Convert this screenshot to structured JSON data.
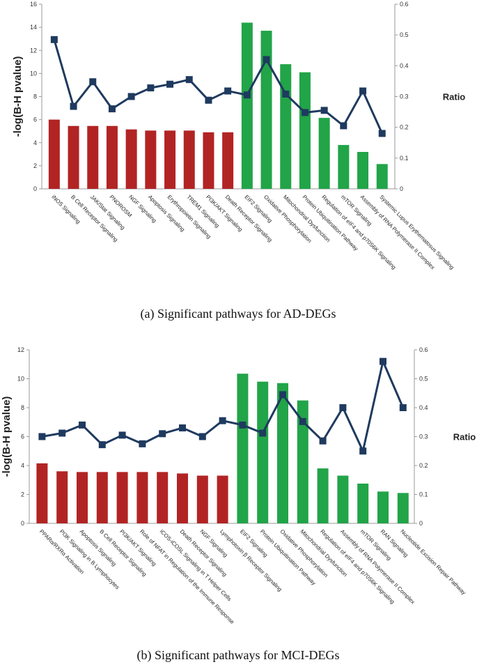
{
  "colors": {
    "red": "#B22424",
    "green": "#22A448",
    "line": "#1F3A5F",
    "axis": "#9a9a9a"
  },
  "chart_data": [
    {
      "type": "bar",
      "caption": "(a)  Significant pathways for AD-DEGs",
      "ylabel": "-log(B-H pvalue)",
      "y2label": "Ratio",
      "ylim": [
        0,
        16
      ],
      "yticks": [
        0,
        2,
        4,
        6,
        8,
        10,
        12,
        14,
        16
      ],
      "y2lim": [
        0,
        0.6
      ],
      "y2ticks": [
        "0",
        "0.1",
        "0.2",
        "0.3",
        "0.4",
        "0.5",
        "0.6"
      ],
      "categories": [
        "iNOS Signaling",
        "B Cell Receptor Signaling",
        "JAK/Stat Signaling",
        "PNOROSM",
        "NGF Signaling",
        "Apoptosis Signaling",
        "Erythropoietin Signaling",
        "TREM1 Signaling",
        "PI3K/AKT Signaling",
        "Death Receptor Signaling",
        "EIF2 Signaling",
        "Oxidative Phosphorylation",
        "Mitochondrial Dysfunction",
        "Protein Ubiquitination Pathway",
        "Regulation of eIF4 and p70S6K Signaling",
        "mTOR Signaling",
        "Assembly of RNA Polymerase II Complex",
        "Systemic Lupus Erythematosus Signaling"
      ],
      "series": [
        {
          "name": "-log(B-H pvalue)",
          "kind": "bar",
          "values": [
            6.0,
            5.45,
            5.45,
            5.45,
            5.15,
            5.05,
            5.05,
            5.05,
            4.9,
            4.9,
            14.4,
            13.7,
            10.8,
            10.1,
            6.15,
            3.8,
            3.2,
            2.15
          ],
          "colors": [
            "red",
            "red",
            "red",
            "red",
            "red",
            "red",
            "red",
            "red",
            "red",
            "red",
            "green",
            "green",
            "green",
            "green",
            "green",
            "green",
            "green",
            "green"
          ]
        },
        {
          "name": "Ratio",
          "kind": "line",
          "axis": "right",
          "values": [
            0.485,
            0.268,
            0.348,
            0.26,
            0.3,
            0.328,
            0.34,
            0.355,
            0.288,
            0.318,
            0.305,
            0.42,
            0.308,
            0.248,
            0.255,
            0.205,
            0.318,
            0.18
          ]
        }
      ]
    },
    {
      "type": "bar",
      "caption": "(b)  Significant pathways for MCI-DEGs",
      "ylabel": "-log(B-H pvalue)",
      "y2label": "Ratio",
      "ylim": [
        0,
        12
      ],
      "yticks": [
        0,
        2,
        4,
        6,
        8,
        10,
        12
      ],
      "y2lim": [
        0,
        0.6
      ],
      "y2ticks": [
        "0",
        "0.1",
        "0.2",
        "0.3",
        "0.4",
        "0.5",
        "0.6"
      ],
      "categories": [
        "PPARα/RXRα Activation",
        "PI3K Signaling in B Lymphocytes",
        "Apoptosis Signaling",
        "B Cell Receptor Signaling",
        "PI3K/AKT Signaling",
        "Role of NFAT in Regulation of the Immune Response",
        "iCOS-iCOSL Signaling in T Helper Cells",
        "Death Receptor Signaling",
        "NGF Signaling",
        "Lymphotoxin β Receptor Signaling",
        "EIF2 Signaling",
        "Protein Ubiquitination Pathway",
        "Oxidative Phosphorylation",
        "Mitochondrial Dysfunction",
        "Regulation of eIF4 and p70S6K Signaling",
        "Assembly of RNA Polymerase II Complex",
        "mTOR Signaling",
        "RAN Signaling",
        "Nucleotide Excision Repair Pathway"
      ],
      "series": [
        {
          "name": "-log(B-H pvalue)",
          "kind": "bar",
          "values": [
            4.15,
            3.6,
            3.55,
            3.55,
            3.55,
            3.55,
            3.55,
            3.45,
            3.3,
            3.3,
            10.35,
            9.8,
            9.7,
            8.5,
            3.8,
            3.3,
            2.75,
            2.2,
            2.1
          ],
          "colors": [
            "red",
            "red",
            "red",
            "red",
            "red",
            "red",
            "red",
            "red",
            "red",
            "red",
            "green",
            "green",
            "green",
            "green",
            "green",
            "green",
            "green",
            "green",
            "green"
          ]
        },
        {
          "name": "Ratio",
          "kind": "line",
          "axis": "right",
          "values": [
            0.3,
            0.312,
            0.34,
            0.272,
            0.305,
            0.275,
            0.31,
            0.33,
            0.3,
            0.355,
            0.34,
            0.312,
            0.445,
            0.352,
            0.285,
            0.4,
            0.25,
            0.56,
            0.4
          ]
        }
      ]
    }
  ]
}
